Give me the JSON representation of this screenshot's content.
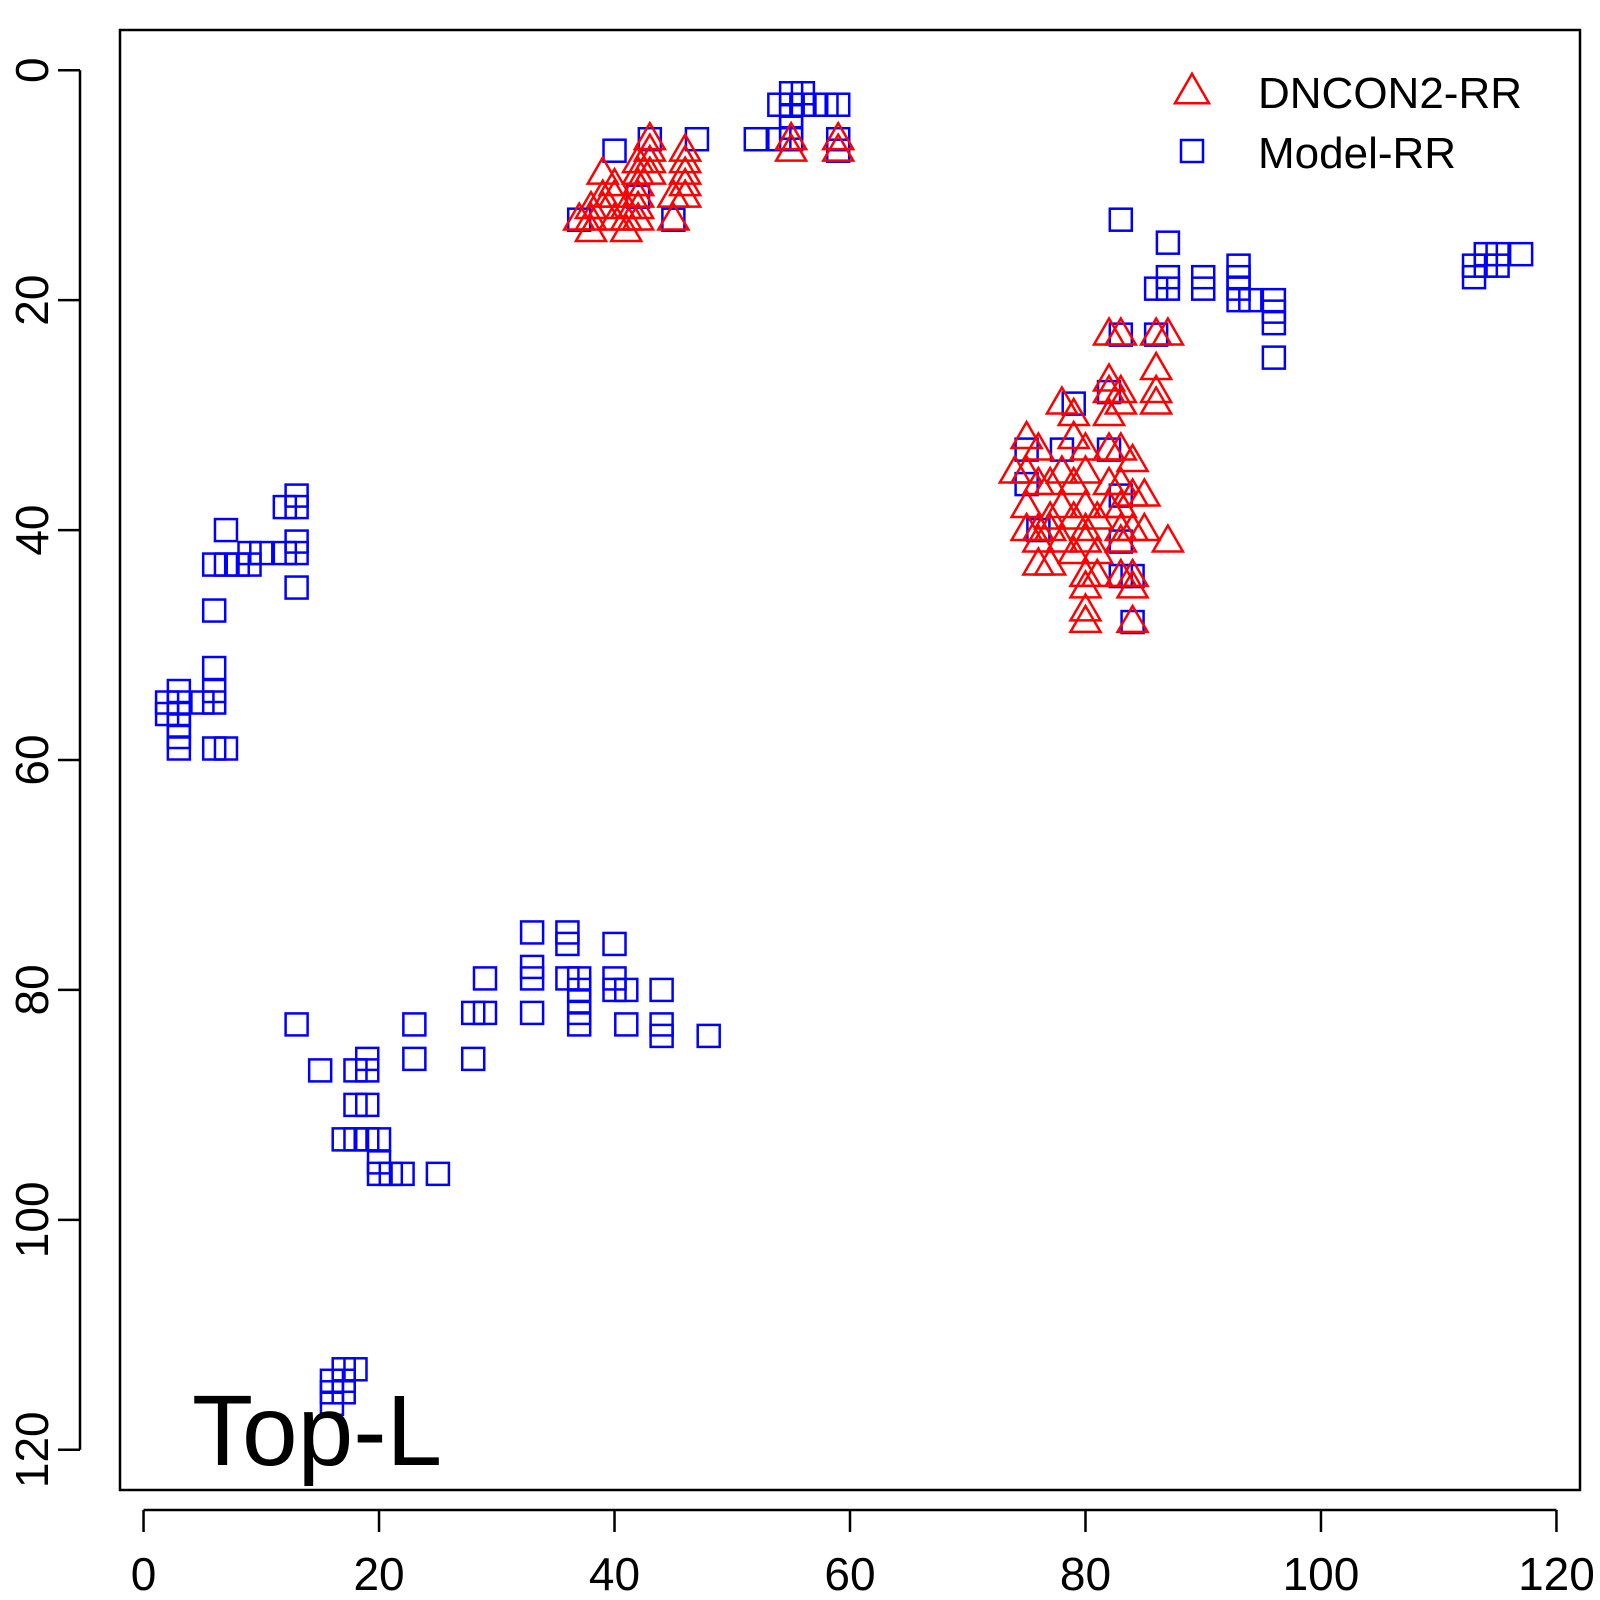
{
  "chart_data": {
    "type": "scatter",
    "annotation": "Top-L",
    "xlim": [
      -2,
      122
    ],
    "ylim": [
      123.5,
      -3.5
    ],
    "y_reversed": true,
    "x_ticks": [
      "0",
      "20",
      "40",
      "60",
      "80",
      "100",
      "120"
    ],
    "y_ticks": [
      "0",
      "20",
      "40",
      "60",
      "80",
      "100",
      "120"
    ],
    "legend_position": "top-right",
    "series": [
      {
        "name": "DNCON2-RR",
        "marker": "triangle",
        "color": "#ff0000",
        "points": [
          [
            37,
            13
          ],
          [
            38,
            13
          ],
          [
            38,
            12
          ],
          [
            39,
            12
          ],
          [
            39,
            11
          ],
          [
            40,
            10
          ],
          [
            40,
            11
          ],
          [
            40,
            13
          ],
          [
            41,
            12
          ],
          [
            41,
            13
          ],
          [
            42,
            12
          ],
          [
            42,
            13
          ],
          [
            42,
            11
          ],
          [
            42,
            10
          ],
          [
            42,
            9
          ],
          [
            42,
            8
          ],
          [
            43,
            9
          ],
          [
            43,
            8
          ],
          [
            43,
            7
          ],
          [
            43,
            6
          ],
          [
            45,
            13
          ],
          [
            45,
            11
          ],
          [
            46,
            11
          ],
          [
            46,
            10
          ],
          [
            46,
            9
          ],
          [
            46,
            8
          ],
          [
            46,
            7
          ],
          [
            38,
            14
          ],
          [
            41,
            14
          ],
          [
            39,
            9
          ],
          [
            55,
            7
          ],
          [
            55,
            6
          ],
          [
            59,
            7
          ],
          [
            59,
            6
          ],
          [
            82,
            23
          ],
          [
            83,
            23
          ],
          [
            86,
            23
          ],
          [
            87,
            23
          ],
          [
            82,
            27
          ],
          [
            82,
            28
          ],
          [
            83,
            28
          ],
          [
            86,
            26
          ],
          [
            86,
            28
          ],
          [
            86,
            29
          ],
          [
            78,
            29
          ],
          [
            79,
            30
          ],
          [
            82,
            30
          ],
          [
            83,
            29
          ],
          [
            75,
            32
          ],
          [
            76,
            33
          ],
          [
            79,
            32
          ],
          [
            80,
            33
          ],
          [
            82,
            33
          ],
          [
            83,
            33
          ],
          [
            84,
            34
          ],
          [
            74,
            35
          ],
          [
            75,
            35
          ],
          [
            76,
            36
          ],
          [
            77,
            36
          ],
          [
            78,
            35
          ],
          [
            79,
            36
          ],
          [
            80,
            35
          ],
          [
            82,
            36
          ],
          [
            83,
            36
          ],
          [
            84,
            37
          ],
          [
            85,
            37
          ],
          [
            75,
            38
          ],
          [
            77,
            39
          ],
          [
            78,
            38
          ],
          [
            80,
            38
          ],
          [
            81,
            39
          ],
          [
            82,
            38
          ],
          [
            83,
            38
          ],
          [
            75,
            40
          ],
          [
            76,
            40
          ],
          [
            77,
            40
          ],
          [
            79,
            39
          ],
          [
            80,
            40
          ],
          [
            83,
            40
          ],
          [
            84,
            40
          ],
          [
            85,
            40
          ],
          [
            87,
            41
          ],
          [
            76,
            41
          ],
          [
            78,
            41
          ],
          [
            79,
            42
          ],
          [
            80,
            41
          ],
          [
            81,
            42
          ],
          [
            83,
            41
          ],
          [
            76,
            43
          ],
          [
            77,
            43
          ],
          [
            80,
            44
          ],
          [
            81,
            44
          ],
          [
            83,
            44
          ],
          [
            84,
            44
          ],
          [
            84,
            45
          ],
          [
            80,
            45
          ],
          [
            80,
            47
          ],
          [
            80,
            48
          ],
          [
            84,
            48
          ]
        ]
      },
      {
        "name": "Model-RR",
        "marker": "square",
        "color": "#0000ff",
        "points": [
          [
            54,
            3
          ],
          [
            55,
            2
          ],
          [
            55,
            3
          ],
          [
            56,
            2
          ],
          [
            56,
            3
          ],
          [
            57,
            3
          ],
          [
            58,
            3
          ],
          [
            59,
            3
          ],
          [
            55,
            4
          ],
          [
            55,
            5
          ],
          [
            52,
            6
          ],
          [
            54,
            6
          ],
          [
            55,
            6
          ],
          [
            59,
            6
          ],
          [
            59,
            7
          ],
          [
            43,
            6
          ],
          [
            47,
            6
          ],
          [
            40,
            7
          ],
          [
            37,
            13
          ],
          [
            45,
            13
          ],
          [
            42,
            11
          ],
          [
            83,
            13
          ],
          [
            87,
            15
          ],
          [
            87,
            18
          ],
          [
            87,
            19
          ],
          [
            86,
            19
          ],
          [
            90,
            18
          ],
          [
            90,
            19
          ],
          [
            93,
            17
          ],
          [
            93,
            18
          ],
          [
            93,
            19
          ],
          [
            93,
            20
          ],
          [
            94,
            20
          ],
          [
            96,
            20
          ],
          [
            96,
            21
          ],
          [
            96,
            22
          ],
          [
            96,
            25
          ],
          [
            113,
            17
          ],
          [
            113,
            18
          ],
          [
            114,
            16
          ],
          [
            114,
            17
          ],
          [
            115,
            16
          ],
          [
            115,
            17
          ],
          [
            117,
            16
          ],
          [
            83,
            23
          ],
          [
            86,
            23
          ],
          [
            79,
            29
          ],
          [
            82,
            28
          ],
          [
            75,
            33
          ],
          [
            78,
            33
          ],
          [
            82,
            33
          ],
          [
            75,
            36
          ],
          [
            83,
            37
          ],
          [
            76,
            40
          ],
          [
            83,
            41
          ],
          [
            83,
            44
          ],
          [
            84,
            44
          ],
          [
            84,
            48
          ],
          [
            12,
            38
          ],
          [
            13,
            37
          ],
          [
            13,
            38
          ],
          [
            13,
            41
          ],
          [
            13,
            42
          ],
          [
            13,
            45
          ],
          [
            7,
            40
          ],
          [
            9,
            42
          ],
          [
            10,
            42
          ],
          [
            12,
            42
          ],
          [
            6,
            43
          ],
          [
            7,
            43
          ],
          [
            8,
            43
          ],
          [
            9,
            43
          ],
          [
            6,
            47
          ],
          [
            6,
            52
          ],
          [
            6,
            54
          ],
          [
            6,
            55
          ],
          [
            3,
            54
          ],
          [
            3,
            55
          ],
          [
            2,
            55
          ],
          [
            2,
            56
          ],
          [
            3,
            56
          ],
          [
            3,
            57
          ],
          [
            3,
            58
          ],
          [
            3,
            59
          ],
          [
            5,
            55
          ],
          [
            6,
            59
          ],
          [
            7,
            59
          ],
          [
            33,
            75
          ],
          [
            36,
            75
          ],
          [
            36,
            76
          ],
          [
            40,
            76
          ],
          [
            33,
            78
          ],
          [
            33,
            79
          ],
          [
            36,
            79
          ],
          [
            37,
            79
          ],
          [
            40,
            79
          ],
          [
            37,
            80
          ],
          [
            40,
            80
          ],
          [
            41,
            80
          ],
          [
            44,
            80
          ],
          [
            29,
            79
          ],
          [
            28,
            82
          ],
          [
            29,
            82
          ],
          [
            33,
            82
          ],
          [
            37,
            81
          ],
          [
            37,
            82
          ],
          [
            37,
            83
          ],
          [
            41,
            83
          ],
          [
            44,
            83
          ],
          [
            44,
            84
          ],
          [
            48,
            84
          ],
          [
            13,
            83
          ],
          [
            23,
            83
          ],
          [
            15,
            87
          ],
          [
            18,
            87
          ],
          [
            19,
            86
          ],
          [
            19,
            87
          ],
          [
            23,
            86
          ],
          [
            28,
            86
          ],
          [
            18,
            90
          ],
          [
            19,
            90
          ],
          [
            17,
            93
          ],
          [
            18,
            93
          ],
          [
            19,
            93
          ],
          [
            20,
            93
          ],
          [
            20,
            95
          ],
          [
            20,
            96
          ],
          [
            21,
            96
          ],
          [
            22,
            96
          ],
          [
            25,
            96
          ],
          [
            16,
            114
          ],
          [
            16,
            115
          ],
          [
            16,
            116
          ],
          [
            17,
            113
          ],
          [
            17,
            114
          ],
          [
            17,
            115
          ],
          [
            18,
            113
          ]
        ]
      }
    ]
  }
}
